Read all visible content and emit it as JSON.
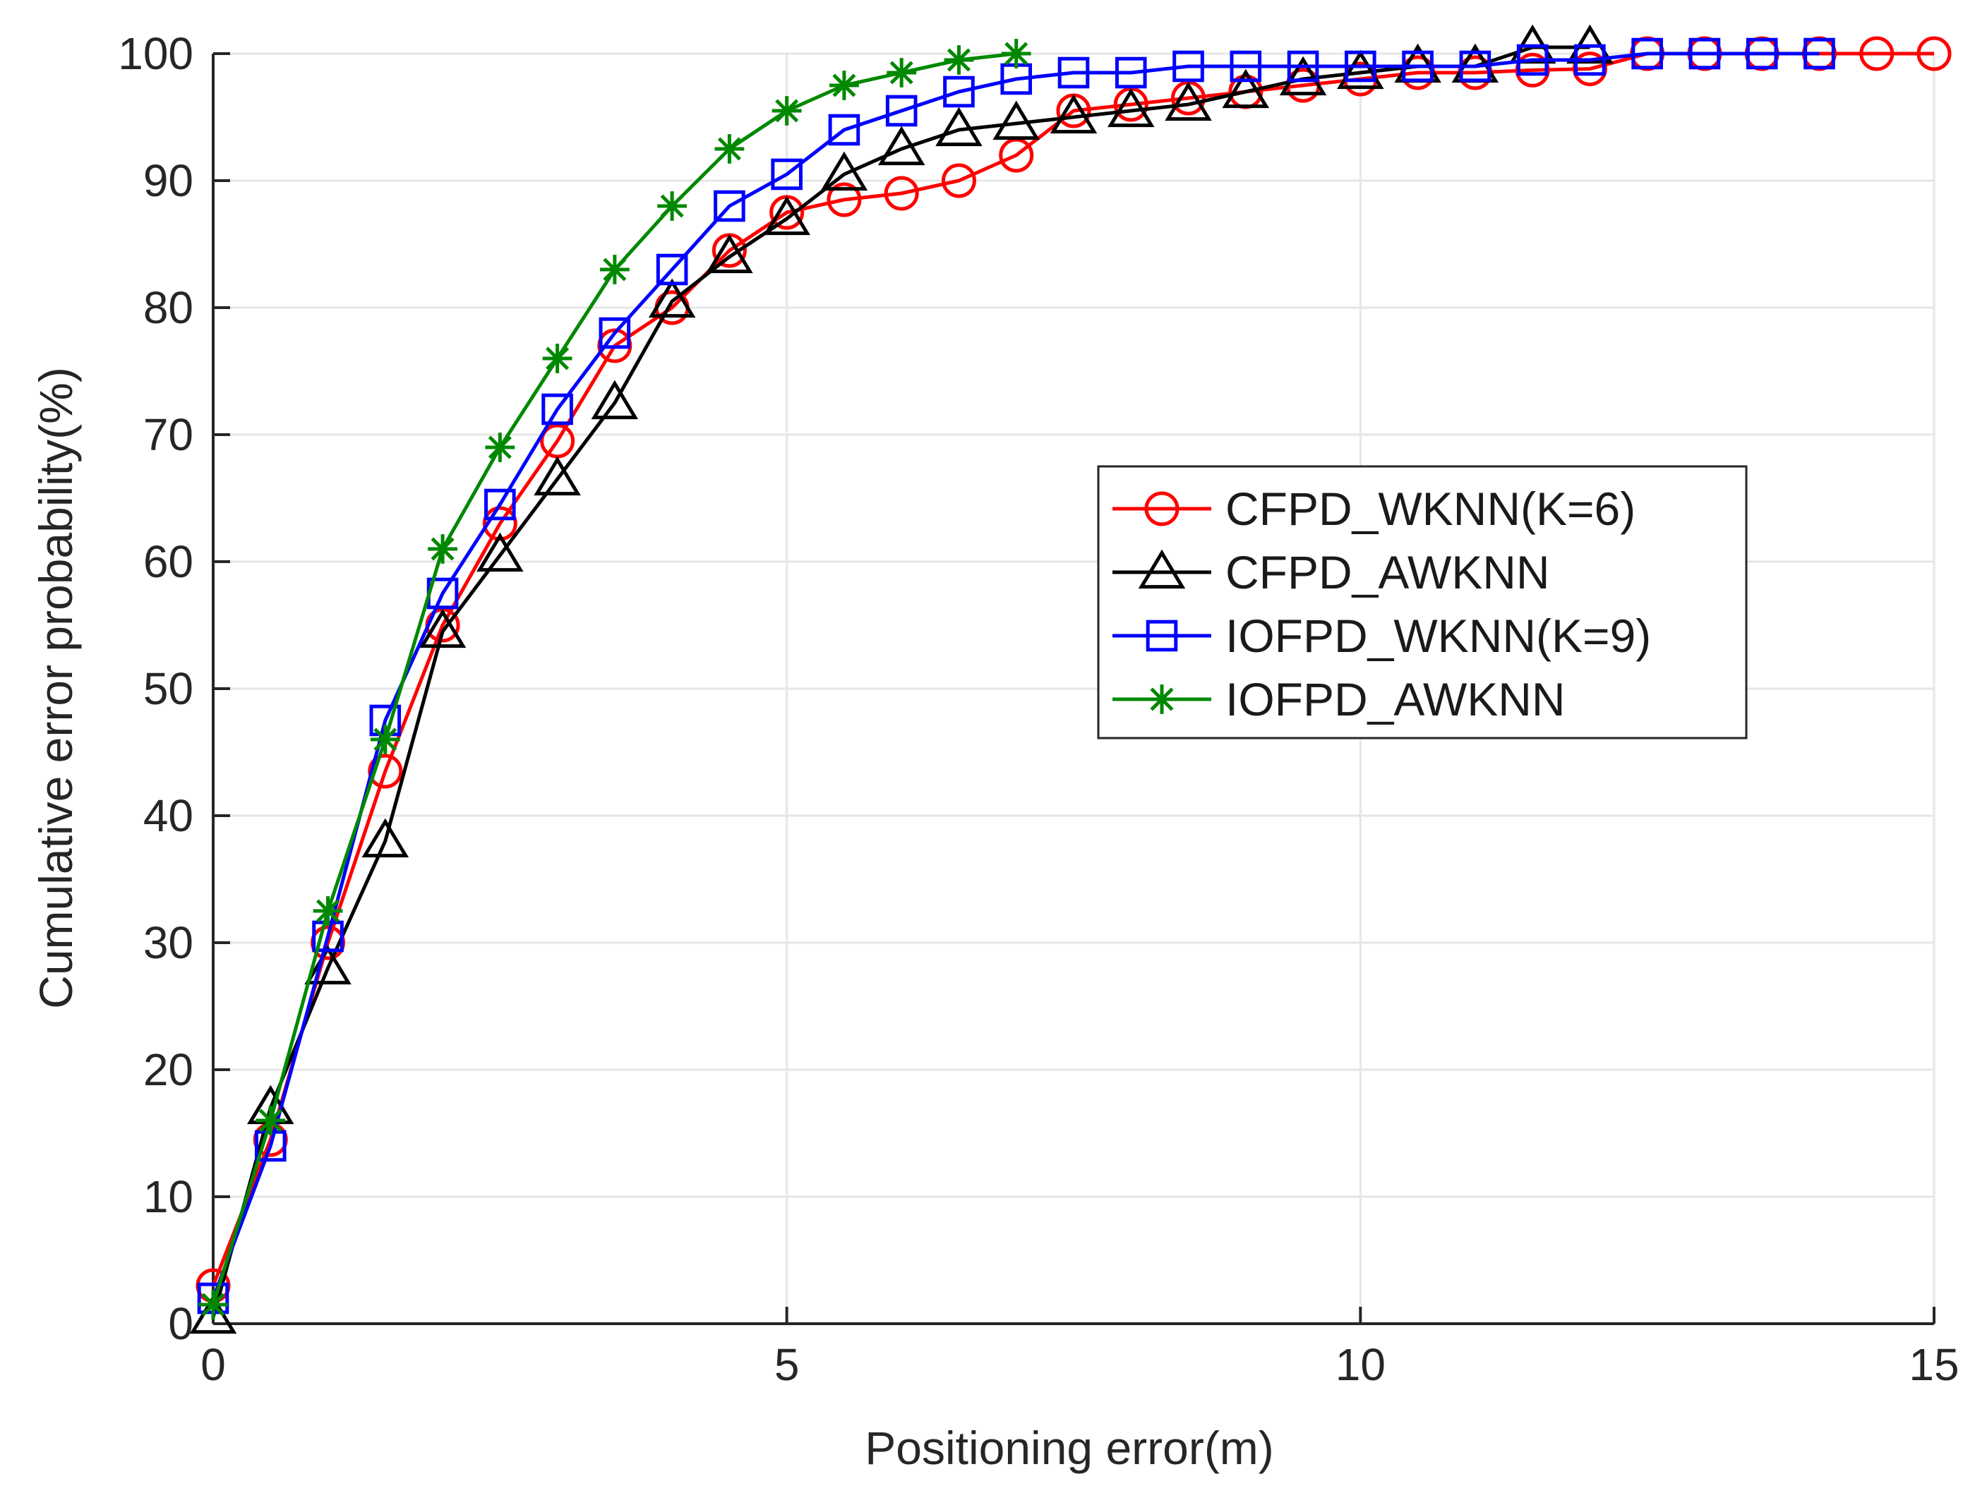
{
  "chart_data": {
    "type": "line",
    "title": "",
    "xlabel": "Positioning error(m)",
    "ylabel": "Cumulative error probability(%)",
    "xlim": [
      0,
      15
    ],
    "ylim": [
      0,
      100
    ],
    "xticks": [
      0,
      5,
      10,
      15
    ],
    "yticks": [
      0,
      10,
      20,
      30,
      40,
      50,
      60,
      70,
      80,
      90,
      100
    ],
    "grid": true,
    "legend_position": "center-right",
    "series": [
      {
        "name": "CFPD_WKNN(K=6)",
        "color": "#ff0000",
        "marker": "circle",
        "x": [
          0,
          0.5,
          1,
          1.5,
          2,
          2.5,
          3,
          3.5,
          4,
          4.5,
          5,
          5.5,
          6,
          6.5,
          7,
          7.5,
          8,
          8.5,
          9,
          9.5,
          10,
          10.5,
          11,
          11.5,
          12,
          12.5,
          13,
          13.5,
          14,
          14.5,
          15
        ],
        "y": [
          3,
          14.5,
          30,
          43.5,
          55,
          63,
          69.5,
          77,
          80,
          84.5,
          87.5,
          88.5,
          89,
          90,
          92,
          95.5,
          96,
          96.5,
          97,
          97.5,
          98,
          98.5,
          98.5,
          98.7,
          98.8,
          100,
          100,
          100,
          100,
          100,
          100
        ]
      },
      {
        "name": "CFPD_AWKNN",
        "color": "#000000",
        "marker": "triangle",
        "x": [
          0,
          0.5,
          1,
          1.5,
          2,
          2.5,
          3,
          3.5,
          4,
          4.5,
          5,
          5.5,
          6,
          6.5,
          7,
          7.5,
          8,
          8.5,
          9,
          9.5,
          10,
          10.5,
          11,
          11.5,
          12
        ],
        "y": [
          0.5,
          17,
          28,
          38,
          54.5,
          60.5,
          66.5,
          72.5,
          80.5,
          84,
          87,
          90.5,
          92.5,
          94,
          94.5,
          95,
          95.5,
          96,
          97,
          98,
          98.5,
          99,
          99,
          100.5,
          100.5
        ]
      },
      {
        "name": "IOFPD_WKNN(K=9)",
        "color": "#0000ff",
        "marker": "square",
        "x": [
          0,
          0.5,
          1,
          1.5,
          2,
          2.5,
          3,
          3.5,
          4,
          4.5,
          5,
          5.5,
          6,
          6.5,
          7,
          7.5,
          8,
          8.5,
          9,
          9.5,
          10,
          10.5,
          11,
          11.5,
          12,
          12.5,
          13,
          13.5,
          14
        ],
        "y": [
          2,
          14,
          30.5,
          47.5,
          57.5,
          64.5,
          72,
          78,
          83,
          88,
          90.5,
          94,
          95.5,
          97,
          98,
          98.5,
          98.5,
          99,
          99,
          99,
          99,
          99,
          99,
          99.5,
          99.5,
          100,
          100,
          100,
          100
        ]
      },
      {
        "name": "IOFPD_AWKNN",
        "color": "#008800",
        "marker": "asterisk",
        "x": [
          0,
          0.5,
          1,
          1.5,
          2,
          2.5,
          3,
          3.5,
          4,
          4.5,
          5,
          5.5,
          6,
          6.5,
          7
        ],
        "y": [
          1.5,
          16,
          32.5,
          46,
          61,
          69,
          76,
          83,
          88,
          92.5,
          95.5,
          97.5,
          98.5,
          99.5,
          100
        ]
      }
    ]
  }
}
